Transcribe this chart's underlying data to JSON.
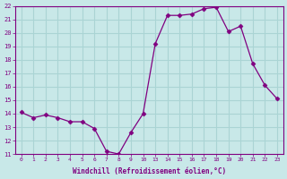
{
  "x_indices": [
    0,
    1,
    2,
    3,
    4,
    5,
    6,
    7,
    8,
    9,
    10,
    11,
    12,
    13,
    14,
    15,
    16,
    17,
    18,
    19,
    20,
    21
  ],
  "y_values": [
    14.1,
    13.7,
    13.9,
    13.7,
    13.4,
    13.4,
    12.9,
    11.2,
    11.0,
    12.6,
    14.0,
    19.2,
    21.3,
    21.3,
    21.4,
    21.8,
    21.9,
    20.1,
    20.5,
    17.7,
    16.1,
    15.1
  ],
  "xtick_positions": [
    0,
    1,
    2,
    3,
    4,
    5,
    6,
    7,
    8,
    9,
    10,
    11,
    12,
    13,
    14,
    15,
    16,
    17,
    18,
    19,
    20,
    21
  ],
  "xtick_labels": [
    "0",
    "1",
    "2",
    "3",
    "4",
    "5",
    "6",
    "7",
    "8",
    "9",
    "10",
    "13",
    "14",
    "15",
    "16",
    "17",
    "18",
    "19",
    "20",
    "21",
    "22",
    "23"
  ],
  "line_color": "#800080",
  "marker": "D",
  "marker_size": 2.5,
  "bg_color": "#c8e8e8",
  "grid_color": "#aad4d4",
  "xlabel": "Windchill (Refroidissement éolien,°C)",
  "ylim": [
    11,
    22
  ],
  "yticks": [
    11,
    12,
    13,
    14,
    15,
    16,
    17,
    18,
    19,
    20,
    21,
    22
  ],
  "tick_color": "#800080",
  "label_color": "#800080",
  "axis_color": "#800080"
}
